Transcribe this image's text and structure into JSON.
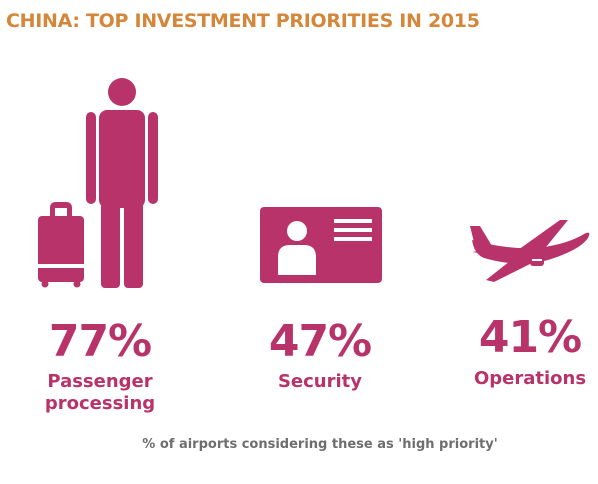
{
  "chart_data": {
    "type": "pictogram",
    "title": "CHINA: TOP INVESTMENT PRIORITIES IN 2015",
    "categories": [
      "Passenger processing",
      "Security",
      "Operations"
    ],
    "values": [
      77,
      47,
      41
    ],
    "value_labels": [
      "77%",
      "47%",
      "41%"
    ],
    "labels": [
      "Passenger\nprocessing",
      "Security",
      "Operations"
    ],
    "icons": [
      "traveler-with-luggage-icon",
      "id-card-icon",
      "airplane-icon"
    ],
    "footnote": "% of airports considering these as 'high priority'",
    "colors": {
      "accent": "#b8336a",
      "title": "#d4873a",
      "footnote": "#6e6e6e"
    }
  }
}
